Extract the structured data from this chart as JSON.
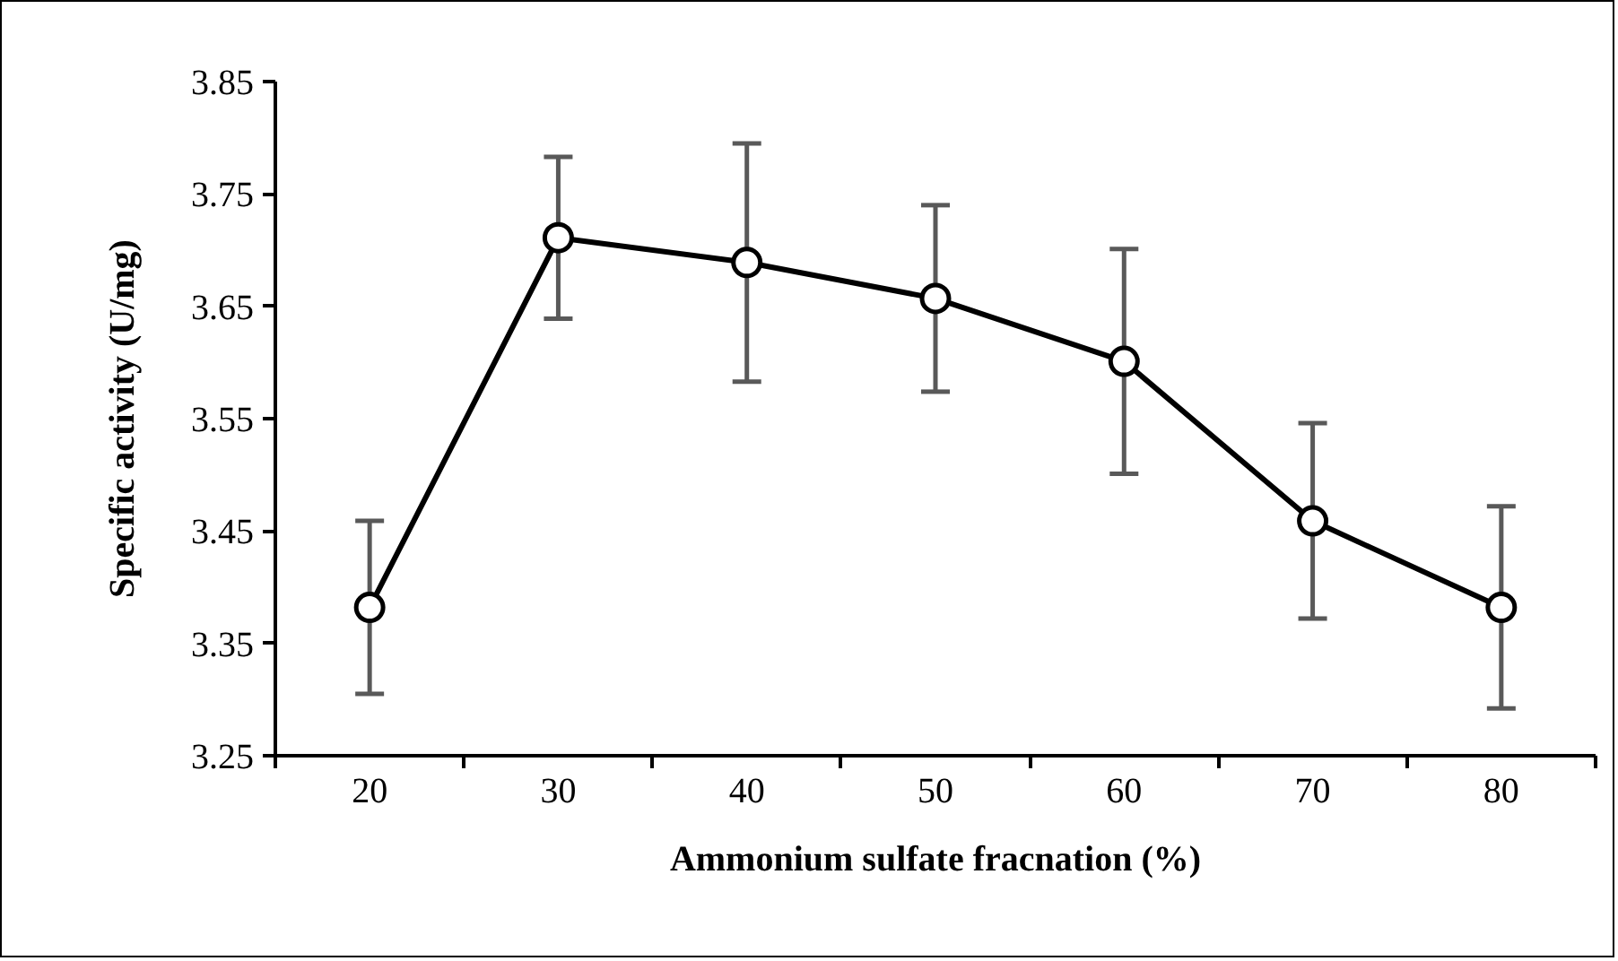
{
  "chart_data": {
    "type": "line",
    "xlabel": "Ammonium sulfate fracnation (%)",
    "ylabel": "Specific activity (U/mg)",
    "categories": [
      "20",
      "30",
      "40",
      "50",
      "60",
      "70",
      "80"
    ],
    "series": [
      {
        "color": "#000000",
        "values": [
          3.382,
          3.711,
          3.689,
          3.657,
          3.601,
          3.459,
          3.382
        ],
        "errors": [
          0.077,
          0.072,
          0.106,
          0.083,
          0.1,
          0.087,
          0.09
        ]
      }
    ],
    "ylim": [
      3.25,
      3.85
    ],
    "yticks": [
      3.25,
      3.35,
      3.45,
      3.55,
      3.65,
      3.75,
      3.85
    ],
    "grid": false,
    "marker": "circle",
    "line_style": "solid"
  }
}
